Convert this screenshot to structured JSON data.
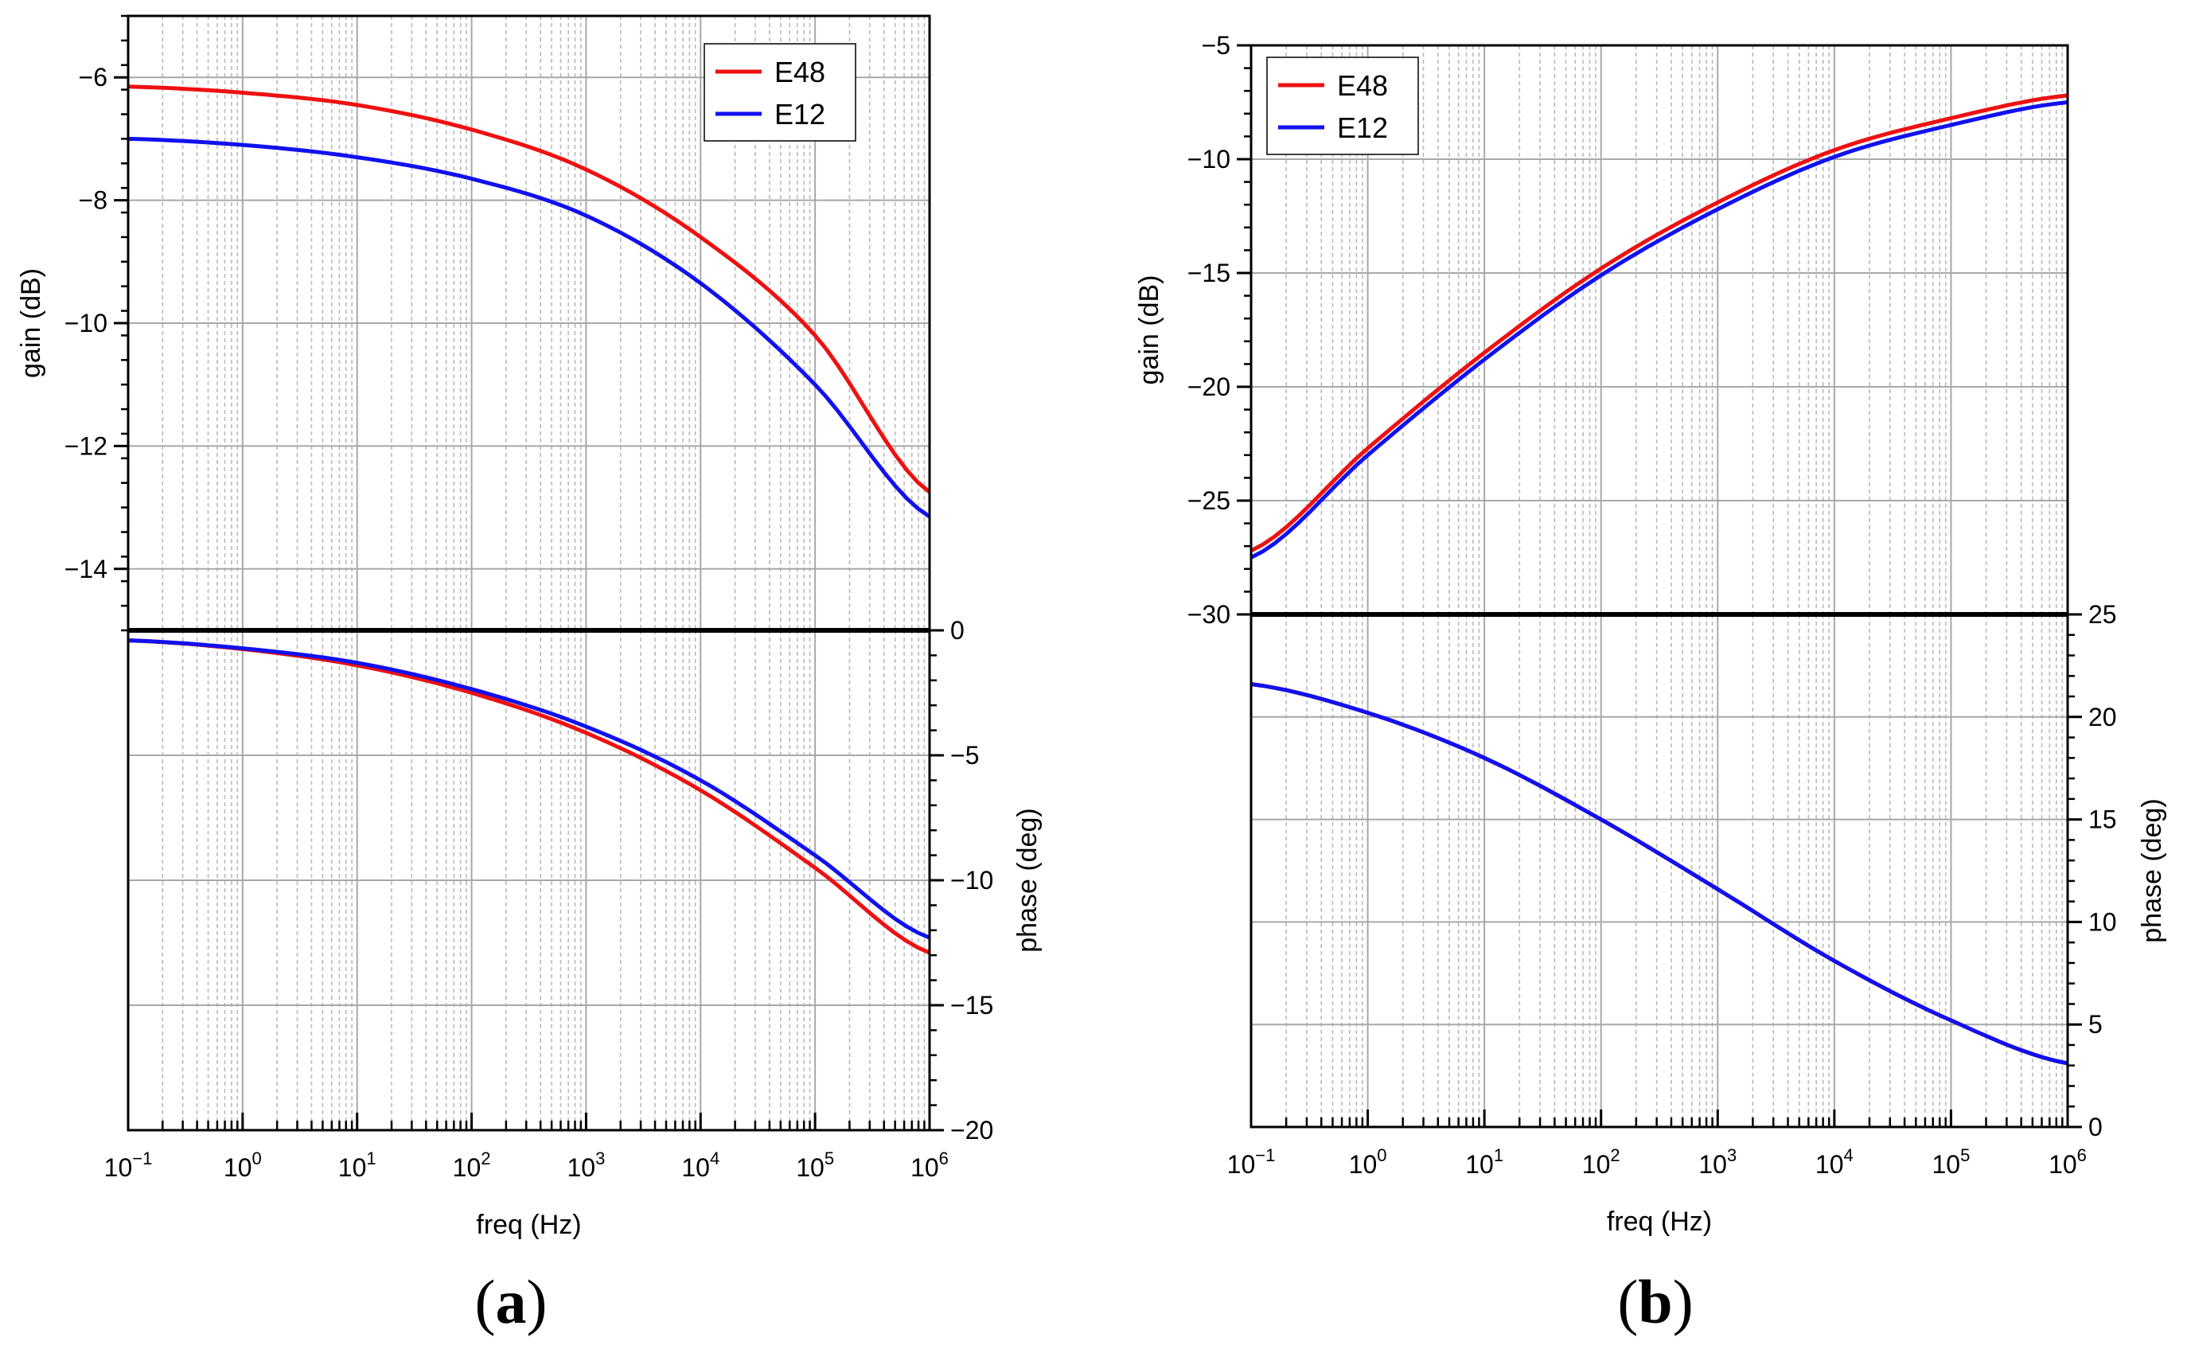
{
  "figure": {
    "panel_labels": [
      {
        "open": "(",
        "letter": "a",
        "close": ")"
      },
      {
        "open": "(",
        "letter": "b",
        "close": ")"
      }
    ]
  },
  "series_colors": {
    "E48": "#ee1111",
    "E12": "#1111ee"
  },
  "chart_data": [
    {
      "type": "line",
      "id": "a-gain",
      "panel": "a",
      "xscale": "log",
      "xlim": [
        0.1,
        1000000
      ],
      "ylim": [
        -15,
        -5
      ],
      "ylabel": "gain (dB)",
      "xlabel": "",
      "yticks": [
        -14,
        -12,
        -10,
        -8,
        -6
      ],
      "ytick_labels": [
        "−14",
        "−12",
        "−10",
        "−8",
        "−6"
      ],
      "legend": {
        "position": "top-right",
        "entries": [
          "E48",
          "E12"
        ]
      },
      "grid": true,
      "x": [
        0.1,
        1,
        10,
        100,
        1000,
        10000,
        100000,
        1000000
      ],
      "series": [
        {
          "name": "E48",
          "color": "#ee1111",
          "values": [
            -6.15,
            -6.25,
            -6.45,
            -6.85,
            -7.5,
            -8.6,
            -10.2,
            -12.75
          ]
        },
        {
          "name": "E12",
          "color": "#1111ee",
          "values": [
            -7.0,
            -7.1,
            -7.3,
            -7.65,
            -8.25,
            -9.35,
            -11.0,
            -13.15
          ]
        }
      ]
    },
    {
      "type": "line",
      "id": "a-phase",
      "panel": "a",
      "xscale": "log",
      "xlim": [
        0.1,
        1000000
      ],
      "ylim": [
        -20,
        0
      ],
      "ylabel": "phase (deg)",
      "xlabel": "freq (Hz)",
      "yticks": [
        -20,
        -15,
        -10,
        -5,
        0
      ],
      "ytick_labels": [
        "−20",
        "−15",
        "−10",
        "−5",
        "0"
      ],
      "xtick_labels": [
        {
          "base": "10",
          "exp": "−1"
        },
        {
          "base": "10",
          "exp": "0"
        },
        {
          "base": "10",
          "exp": "1"
        },
        {
          "base": "10",
          "exp": "2"
        },
        {
          "base": "10",
          "exp": "3"
        },
        {
          "base": "10",
          "exp": "4"
        },
        {
          "base": "10",
          "exp": "5"
        },
        {
          "base": "10",
          "exp": "6"
        }
      ],
      "grid": true,
      "x": [
        0.1,
        1,
        10,
        100,
        1000,
        10000,
        100000,
        1000000
      ],
      "series": [
        {
          "name": "E48",
          "color": "#ee1111",
          "values": [
            -0.4,
            -0.75,
            -1.4,
            -2.5,
            -4.1,
            -6.4,
            -9.5,
            -12.9
          ]
        },
        {
          "name": "E12",
          "color": "#1111ee",
          "values": [
            -0.4,
            -0.72,
            -1.3,
            -2.35,
            -3.85,
            -6.0,
            -9.0,
            -12.3
          ]
        }
      ]
    },
    {
      "type": "line",
      "id": "b-gain",
      "panel": "b",
      "xscale": "log",
      "xlim": [
        0.1,
        1000000
      ],
      "ylim": [
        -30,
        -5
      ],
      "ylabel": "gain (dB)",
      "xlabel": "",
      "yticks": [
        -30,
        -25,
        -20,
        -15,
        -10,
        -5
      ],
      "ytick_labels": [
        "−30",
        "−25",
        "−20",
        "−15",
        "−10",
        "−5"
      ],
      "legend": {
        "position": "top-left",
        "entries": [
          "E48",
          "E12"
        ]
      },
      "grid": true,
      "x": [
        0.1,
        1,
        10,
        100,
        1000,
        10000,
        100000,
        1000000
      ],
      "series": [
        {
          "name": "E48",
          "color": "#ee1111",
          "values": [
            -27.2,
            -22.7,
            -18.5,
            -14.8,
            -11.9,
            -9.6,
            -8.2,
            -7.2
          ]
        },
        {
          "name": "E12",
          "color": "#1111ee",
          "values": [
            -27.5,
            -23.0,
            -18.8,
            -15.1,
            -12.2,
            -9.9,
            -8.5,
            -7.5
          ]
        }
      ]
    },
    {
      "type": "line",
      "id": "b-phase",
      "panel": "b",
      "xscale": "log",
      "xlim": [
        0.1,
        1000000
      ],
      "ylim": [
        0,
        25
      ],
      "ylabel": "phase (deg)",
      "xlabel": "freq (Hz)",
      "yticks": [
        0,
        5,
        10,
        15,
        20,
        25
      ],
      "ytick_labels": [
        "0",
        "5",
        "10",
        "15",
        "20",
        "25"
      ],
      "xtick_labels": [
        {
          "base": "10",
          "exp": "−1"
        },
        {
          "base": "10",
          "exp": "0"
        },
        {
          "base": "10",
          "exp": "1"
        },
        {
          "base": "10",
          "exp": "2"
        },
        {
          "base": "10",
          "exp": "3"
        },
        {
          "base": "10",
          "exp": "4"
        },
        {
          "base": "10",
          "exp": "5"
        },
        {
          "base": "10",
          "exp": "6"
        }
      ],
      "grid": true,
      "x": [
        0.1,
        1,
        10,
        100,
        1000,
        10000,
        100000,
        1000000
      ],
      "series": [
        {
          "name": "E48",
          "color": "#ee1111",
          "values": [
            21.6,
            20.2,
            18.0,
            15.0,
            11.6,
            8.1,
            5.2,
            3.1
          ]
        },
        {
          "name": "E12",
          "color": "#1111ee",
          "values": [
            21.6,
            20.2,
            18.0,
            15.0,
            11.6,
            8.1,
            5.2,
            3.1
          ]
        }
      ]
    }
  ]
}
